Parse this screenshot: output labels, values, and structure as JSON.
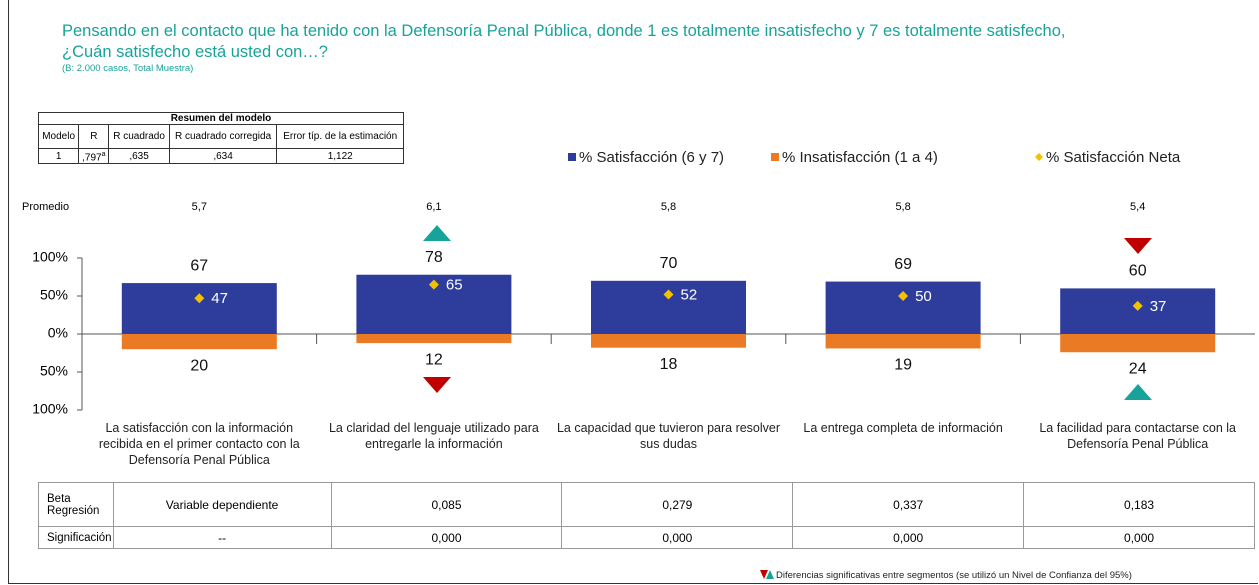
{
  "header": {
    "title_line1": "Pensando en el contacto que ha tenido con la Defensoría Penal Pública, donde 1 es totalmente insatisfecho y 7 es totalmente satisfecho,",
    "title_line2": "¿Cuán satisfecho está usted con…?",
    "subtitle": "(B: 2.000 casos, Total Muestra)"
  },
  "model_table": {
    "title": "Resumen del modelo",
    "columns": [
      "Modelo",
      "R",
      "R cuadrado",
      "R cuadrado corregida",
      "Error típ. de la estimación"
    ],
    "row": [
      "1",
      ",797",
      ",635",
      ",634",
      "1,122"
    ],
    "r_note": "a"
  },
  "promedio": {
    "label": "Promedio",
    "values": [
      "5,7",
      "6,1",
      "5,8",
      "5,8",
      "5,4"
    ]
  },
  "chart_data": {
    "type": "bar",
    "categories": [
      "La satisfacción con la información recibida en el primer contacto con la Defensoría Penal Pública",
      "La claridad del lenguaje utilizado para entregarle la información",
      "La capacidad que tuvieron para resolver sus dudas",
      "La entrega completa de información",
      "La facilidad para contactarse con la Defensoría Penal Pública"
    ],
    "series": [
      {
        "name": "% Satisfacción (6 y 7)",
        "color": "#2e3d9c",
        "values": [
          67,
          78,
          70,
          69,
          60
        ]
      },
      {
        "name": "% Insatisfacción (1 a 4)",
        "color": "#ea7a24",
        "values": [
          -20,
          -12,
          -18,
          -19,
          -24
        ],
        "value_labels": [
          "20",
          "12",
          "18",
          "19",
          "24"
        ]
      },
      {
        "name": "% Satisfacción Neta",
        "color": "#f2c200",
        "style": "diamond",
        "values": [
          47,
          65,
          52,
          50,
          37
        ]
      }
    ],
    "ylim": [
      -100,
      100
    ],
    "yticks": [
      {
        "value": 100,
        "label": "100%"
      },
      {
        "value": 50,
        "label": "50%"
      },
      {
        "value": 0,
        "label": "0%"
      },
      {
        "value": -50,
        "label": "50%"
      },
      {
        "value": -100,
        "label": "100%"
      }
    ]
  },
  "regression_table": {
    "rows": [
      [
        "Beta Regresión",
        "Variable dependiente",
        "0,085",
        "0,279",
        "0,337",
        "0,183"
      ],
      [
        "Significación",
        "--",
        "0,000",
        "0,000",
        "0,000",
        "0,000"
      ]
    ]
  },
  "footnote": "Diferencias significativas entre segmentos (se utilizó un Nivel de Confianza del 95%)"
}
